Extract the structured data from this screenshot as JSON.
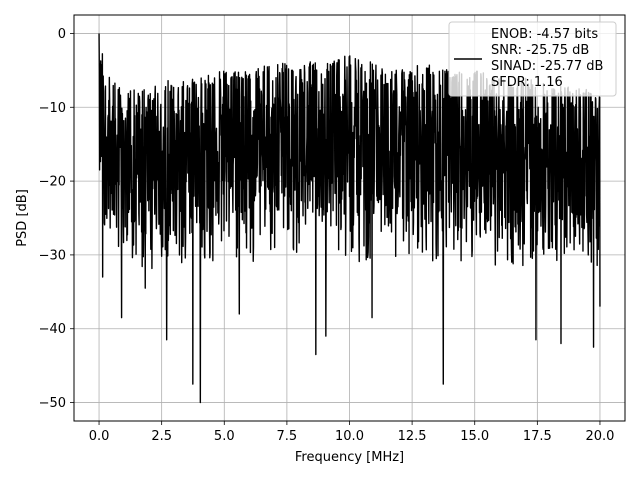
{
  "chart_data": {
    "type": "line",
    "title": "",
    "xlabel": "Frequency [MHz]",
    "ylabel": "PSD [dB]",
    "xlim": [
      -1.0,
      21.0
    ],
    "ylim": [
      -52.5,
      2.5
    ],
    "xticks": [
      0.0,
      2.5,
      5.0,
      7.5,
      10.0,
      12.5,
      15.0,
      17.5,
      20.0
    ],
    "xtick_labels": [
      "0.0",
      "2.5",
      "5.0",
      "7.5",
      "10.0",
      "12.5",
      "15.0",
      "17.5",
      "20.0"
    ],
    "yticks": [
      0,
      -10,
      -20,
      -30,
      -40,
      -50
    ],
    "ytick_labels": [
      "0",
      "−10",
      "−20",
      "−30",
      "−40",
      "−50"
    ],
    "grid": true,
    "legend_position": "top-right",
    "series": [
      {
        "name": "",
        "color": "#000000",
        "legend_lines": [
          "ENOB: -4.57 bits",
          "SNR: -25.75 dB",
          "SINAD: -25.77 dB",
          "SFDR: 1.16"
        ],
        "x_range": [
          0.0,
          20.0
        ],
        "upper_envelope": [
          [
            0.0,
            0
          ],
          [
            0.3,
            -5
          ],
          [
            1,
            -8
          ],
          [
            2,
            -7
          ],
          [
            3,
            -6
          ],
          [
            4,
            -6
          ],
          [
            5,
            -5
          ],
          [
            6,
            -5
          ],
          [
            7,
            -4
          ],
          [
            8,
            -4
          ],
          [
            9,
            -3.5
          ],
          [
            10,
            -3
          ],
          [
            11,
            -4
          ],
          [
            12,
            -5
          ],
          [
            13,
            -4
          ],
          [
            14,
            -5
          ],
          [
            15,
            -5
          ],
          [
            16,
            -6
          ],
          [
            17,
            -6
          ],
          [
            18,
            -7
          ],
          [
            19,
            -7
          ],
          [
            20,
            -8
          ]
        ],
        "lower_envelope": [
          [
            0.0,
            -23
          ],
          [
            0.5,
            -27
          ],
          [
            2,
            -28
          ],
          [
            4,
            -28
          ],
          [
            6,
            -27
          ],
          [
            8,
            -26
          ],
          [
            10,
            -27
          ],
          [
            12,
            -27
          ],
          [
            14,
            -27
          ],
          [
            16,
            -28
          ],
          [
            18,
            -27
          ],
          [
            20,
            -28
          ]
        ],
        "deep_nulls": [
          [
            0.15,
            -33
          ],
          [
            0.9,
            -38.5
          ],
          [
            1.85,
            -34.5
          ],
          [
            2.7,
            -41.5
          ],
          [
            3.75,
            -47.5
          ],
          [
            4.05,
            -50
          ],
          [
            5.6,
            -38
          ],
          [
            8.65,
            -43.5
          ],
          [
            9.05,
            -41
          ],
          [
            10.9,
            -38.5
          ],
          [
            13.75,
            -47.5
          ],
          [
            17.45,
            -41.5
          ],
          [
            18.45,
            -42
          ],
          [
            19.75,
            -42.5
          ],
          [
            20.0,
            -37
          ]
        ]
      }
    ]
  }
}
